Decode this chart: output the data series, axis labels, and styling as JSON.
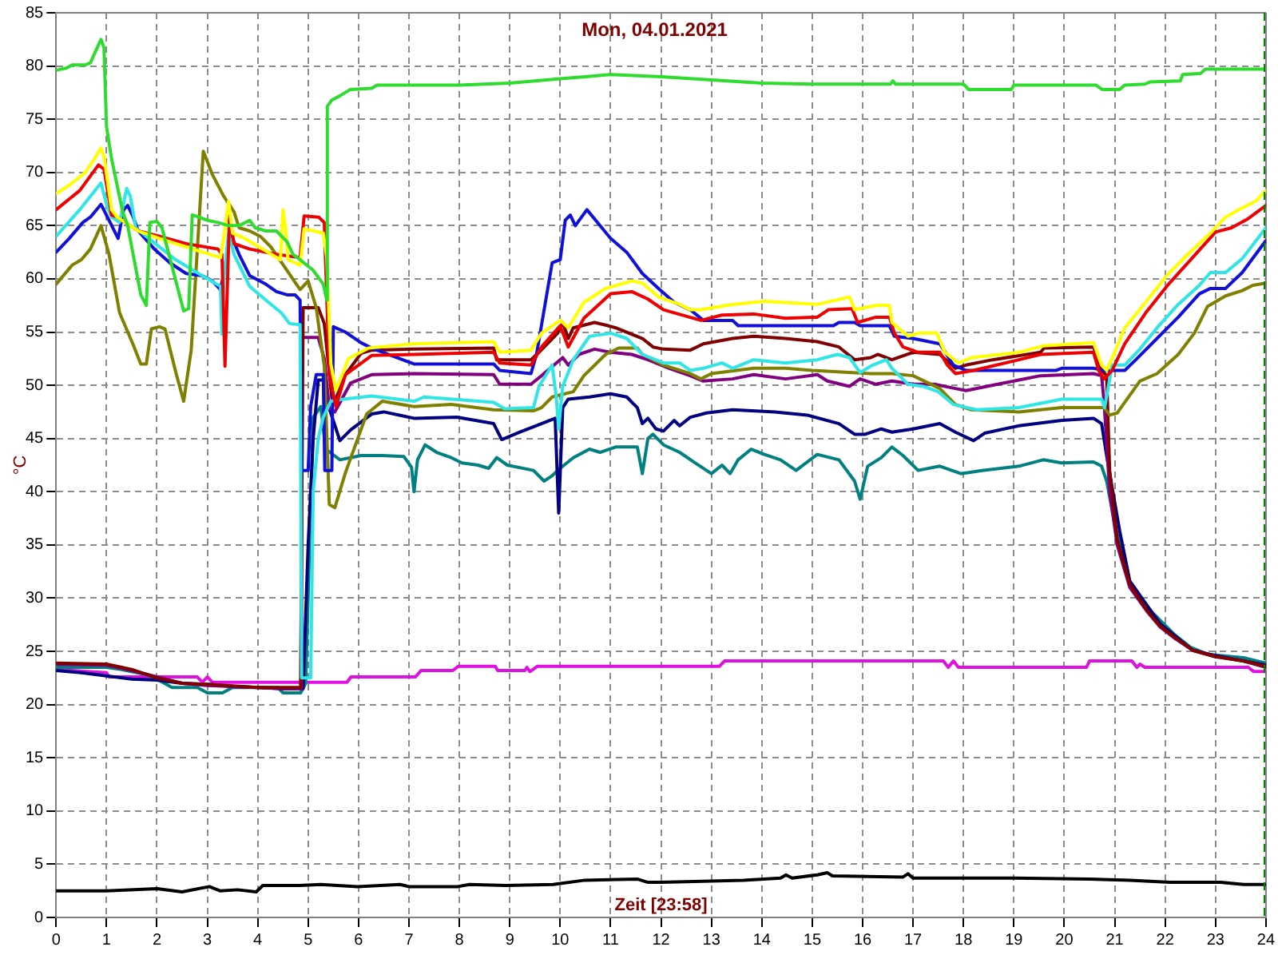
{
  "chart_data": {
    "type": "line",
    "title": "Mon, 04.01.2021",
    "xlabel": "Zeit [23:58]",
    "ylabel": "°C",
    "xlim": [
      0,
      24
    ],
    "ylim": [
      0,
      85
    ],
    "xticks": [
      0,
      1,
      2,
      3,
      4,
      5,
      6,
      7,
      8,
      9,
      10,
      11,
      12,
      13,
      14,
      15,
      16,
      17,
      18,
      19,
      20,
      21,
      22,
      23,
      24
    ],
    "yticks": [
      0,
      5,
      10,
      15,
      20,
      25,
      30,
      35,
      40,
      45,
      50,
      55,
      60,
      65,
      70,
      75,
      80,
      85
    ],
    "grid": true,
    "marker": "none",
    "ref_lines": [
      {
        "axis": "x",
        "value": 23.97,
        "color": "#008000",
        "line_style": "dashed"
      }
    ],
    "series": [
      {
        "color": "#2edc2e",
        "x": [
          0,
          0.2,
          0.32,
          0.58,
          0.68,
          0.89,
          0.95,
          1,
          1.1,
          1.21,
          1.32,
          1.42,
          1.68,
          1.79,
          1.86,
          2,
          2.1,
          2.53,
          2.63,
          2.7,
          2.84,
          3,
          3.21,
          3.42,
          3.63,
          3.84,
          3.95,
          4.16,
          4.37,
          4.58,
          4.7,
          4.84,
          5.1,
          5.3,
          5.37,
          5.38,
          5.47,
          5.63,
          5.84,
          6.26,
          6.37,
          7,
          8,
          9,
          10,
          10.5,
          11,
          12,
          13,
          14,
          15,
          15.95,
          16.55,
          16.6,
          16.65,
          18,
          18.1,
          18.95,
          19,
          20.63,
          20.75,
          21.1,
          21.2,
          21.6,
          21.7,
          22.3,
          22.35,
          22.7,
          22.8,
          24
        ],
        "values": [
          79.6,
          79.8,
          80.1,
          80.1,
          80.3,
          82.5,
          81.7,
          74.3,
          71.3,
          68.8,
          66.3,
          65,
          58.5,
          57.5,
          65.3,
          65.4,
          64.8,
          57,
          57.2,
          66,
          65.8,
          65.5,
          65.3,
          65,
          65,
          65.5,
          64.8,
          64.5,
          64.5,
          63.5,
          62.3,
          61.8,
          60.8,
          59.5,
          58,
          76.2,
          76.8,
          77.2,
          77.8,
          77.9,
          78.2,
          78.2,
          78.2,
          78.4,
          78.8,
          79,
          79.2,
          79,
          78.7,
          78.4,
          78.3,
          78.3,
          78.3,
          78.6,
          78.3,
          78.3,
          77.8,
          77.8,
          78.2,
          78.2,
          77.8,
          77.8,
          78.2,
          78.3,
          78.5,
          78.6,
          79.2,
          79.3,
          79.7,
          79.7
        ]
      },
      {
        "color": "#ffff00",
        "x": [
          0,
          0.26,
          0.58,
          0.79,
          0.89,
          0.95,
          1.1,
          1.21,
          1.63,
          2.05,
          2.58,
          3.26,
          3.33,
          3.42,
          3.5,
          3.74,
          4.45,
          4.5,
          4.55,
          4.6,
          4.84,
          4.92,
          5.3,
          5.37,
          5.45,
          5.55,
          5.8,
          6.2,
          7.1,
          8.68,
          8.8,
          9.42,
          9.63,
          10,
          10.16,
          10.47,
          10.9,
          11.42,
          11.63,
          11.95,
          12.37,
          12.58,
          12.79,
          13.42,
          14.05,
          15.1,
          15.74,
          15.84,
          16.26,
          16.53,
          16.58,
          16.9,
          17.1,
          17.47,
          17.63,
          17.9,
          18.16,
          19.1,
          19.58,
          20.58,
          20.74,
          20.84,
          21,
          21.2,
          21.63,
          22.05,
          22.47,
          22.9,
          23.2,
          23.5,
          23.8,
          24
        ],
        "values": [
          68,
          68.8,
          70,
          71.5,
          72.3,
          71.5,
          66.5,
          65.8,
          64.5,
          63.8,
          63,
          62,
          64,
          67.3,
          64.3,
          63.8,
          61.8,
          66.5,
          64.8,
          61.8,
          61.3,
          64.7,
          64.3,
          62,
          52,
          49.5,
          52.5,
          53.5,
          53.9,
          54.1,
          53.1,
          53.3,
          54.9,
          56.1,
          55.4,
          57.8,
          59.1,
          59.8,
          59.6,
          58.3,
          57.6,
          57.1,
          57.1,
          57.6,
          57.9,
          57.6,
          58.3,
          57.1,
          57.5,
          57.5,
          55.9,
          54.6,
          54.9,
          54.9,
          53.1,
          52.1,
          52.6,
          53.1,
          53.7,
          54,
          51.9,
          51.4,
          53.1,
          55.4,
          57.9,
          60.4,
          62.4,
          64.3,
          65.8,
          66.6,
          67.3,
          68.3
        ]
      },
      {
        "color": "#ee0000",
        "x": [
          0,
          0.47,
          0.84,
          0.95,
          1.1,
          1.21,
          1.63,
          2.05,
          2.58,
          3.21,
          3.29,
          3.35,
          3.44,
          3.53,
          3.84,
          4.37,
          4.84,
          4.92,
          5.21,
          5.32,
          5.42,
          5.55,
          5.74,
          6.26,
          7.1,
          8.68,
          8.8,
          9.42,
          9.63,
          10,
          10.16,
          10.47,
          11,
          11.42,
          11.74,
          12.05,
          12.79,
          13.21,
          13.84,
          14.47,
          15.1,
          15.32,
          15.79,
          15.9,
          16.26,
          16.53,
          16.63,
          16.8,
          17.1,
          17.53,
          17.68,
          17.84,
          18.2,
          19.1,
          19.53,
          20.58,
          20.68,
          20.79,
          20.95,
          21.2,
          21.63,
          22.05,
          22.47,
          23,
          23.32,
          23.63,
          24
        ],
        "values": [
          66.5,
          68.3,
          70.7,
          70.3,
          66,
          65.8,
          64.5,
          64,
          63.3,
          62.8,
          62.3,
          51.8,
          66,
          63.3,
          62.8,
          62.3,
          62,
          65.9,
          65.8,
          65.3,
          51,
          48,
          51,
          52.8,
          52.9,
          53.1,
          52.1,
          51.9,
          53.6,
          55.6,
          53.6,
          56.3,
          58.6,
          58.8,
          58.1,
          57.1,
          56.1,
          56.6,
          56.7,
          56.3,
          56.4,
          57.1,
          57.2,
          55.9,
          56.4,
          56.4,
          54.9,
          53.6,
          53.1,
          53.1,
          51.9,
          51.1,
          51.4,
          52.4,
          52.9,
          53.1,
          51.4,
          50.6,
          51.4,
          53.9,
          56.9,
          59.4,
          61.6,
          64.4,
          64.8,
          65.6,
          66.9
        ]
      },
      {
        "color": "#2ee6e6",
        "x": [
          0,
          0.47,
          0.89,
          1,
          1.1,
          1.26,
          1.4,
          1.47,
          1.58,
          1.84,
          2.37,
          2.9,
          3.26,
          3.29,
          3.33,
          3.42,
          3.53,
          3.84,
          4.16,
          4.47,
          4.63,
          4.84,
          4.87,
          5.05,
          5.1,
          5.2,
          5.3,
          5.45,
          5.7,
          6.26,
          7.1,
          7.3,
          8.68,
          8.9,
          9.47,
          9.58,
          9.84,
          9.92,
          9.97,
          10.05,
          10.26,
          10.58,
          11,
          11.32,
          11.63,
          12.05,
          12.37,
          12.58,
          12.84,
          13.21,
          13.42,
          13.84,
          14.47,
          15.1,
          15.5,
          15.74,
          15.95,
          16.2,
          16.47,
          16.58,
          16.9,
          17.2,
          17.5,
          17.8,
          18.26,
          19.1,
          19.95,
          20.74,
          20.8,
          20.95,
          21.2,
          21.5,
          21.84,
          22.26,
          22.68,
          22.9,
          23.2,
          23.53,
          24
        ],
        "values": [
          64,
          66.5,
          69,
          67,
          65.8,
          65.3,
          68.5,
          67.8,
          64.8,
          63.8,
          61.8,
          60.3,
          59.3,
          54.8,
          60,
          64.3,
          62.3,
          59.3,
          58,
          56.8,
          55.8,
          55.7,
          22.5,
          22.5,
          40,
          45,
          47,
          48.5,
          48.7,
          49,
          48.5,
          48.9,
          48.4,
          47.8,
          47.9,
          49.9,
          51.9,
          49,
          45.9,
          49.9,
          52.4,
          54.6,
          54.9,
          54.4,
          52.9,
          52.1,
          52.1,
          51.4,
          51.6,
          52.1,
          51.6,
          52.4,
          52.1,
          52.4,
          52.9,
          52.6,
          51.2,
          51.9,
          52.4,
          51.6,
          50.1,
          49.9,
          49.4,
          48.2,
          47.7,
          47.9,
          48.7,
          48.7,
          47.9,
          51.9,
          51.9,
          53.4,
          55.4,
          57.6,
          59.4,
          60.6,
          60.6,
          61.9,
          64.8
        ]
      },
      {
        "color": "#1010d8",
        "x": [
          0,
          0.26,
          0.53,
          0.68,
          0.89,
          1.05,
          1.23,
          1.34,
          1.42,
          1.53,
          1.63,
          1.95,
          2.26,
          2.58,
          2.9,
          3.1,
          3.26,
          3.35,
          3.44,
          3.63,
          3.84,
          4.16,
          4.37,
          4.58,
          4.74,
          4.84,
          4.87,
          5,
          5.05,
          5.16,
          5.3,
          5.33,
          5.47,
          5.5,
          5.74,
          6.05,
          6.26,
          7.1,
          8.68,
          8.8,
          9.42,
          9.53,
          9.84,
          10,
          10.1,
          10.2,
          10.3,
          10.53,
          10.79,
          11,
          11.32,
          11.63,
          11.95,
          12.26,
          12.58,
          12.84,
          13.42,
          13.53,
          15.42,
          15.53,
          15.84,
          15.95,
          16.53,
          16.63,
          17,
          17.53,
          17.8,
          18.05,
          19.84,
          19.95,
          20.58,
          20.8,
          21.2,
          21.42,
          21.84,
          22.26,
          22.68,
          22.9,
          23.2,
          23.53,
          24
        ],
        "values": [
          62.5,
          63.8,
          65.3,
          65.8,
          67,
          65.5,
          63.8,
          66.5,
          66.9,
          65.8,
          64.5,
          62.8,
          61.5,
          60.5,
          60.3,
          59.8,
          59,
          61,
          64.5,
          62.3,
          60.3,
          59.5,
          58.8,
          58.5,
          58.5,
          58,
          42,
          42,
          48,
          51,
          51,
          42,
          42,
          55.5,
          55,
          54,
          53.5,
          52,
          52,
          51.4,
          51.1,
          52.9,
          61.5,
          61.8,
          65.5,
          66,
          65,
          66.5,
          65,
          63.8,
          62.5,
          60.5,
          59.1,
          57.8,
          57.1,
          56.1,
          56.1,
          55.6,
          55.6,
          55.9,
          55.9,
          55.6,
          55.6,
          54.6,
          54.4,
          53.9,
          51.9,
          51.4,
          51.4,
          51.6,
          51.6,
          51.4,
          51.4,
          52.4,
          54.4,
          56.4,
          58.6,
          59.1,
          59.1,
          60.6,
          63.6
        ]
      },
      {
        "color": "#808000",
        "x": [
          0,
          0.32,
          0.5,
          0.68,
          0.89,
          1.05,
          1.26,
          1.53,
          1.68,
          1.79,
          1.89,
          2.05,
          2.16,
          2.37,
          2.53,
          2.68,
          2.92,
          3.1,
          3.32,
          3.53,
          3.63,
          3.84,
          4.05,
          4.26,
          4.58,
          4.84,
          5,
          5.16,
          5.32,
          5.42,
          5.53,
          5.74,
          6.16,
          6.47,
          7.1,
          7.84,
          8.68,
          9.47,
          9.63,
          9.84,
          10.26,
          10.47,
          10.9,
          11.16,
          11.53,
          11.63,
          12.05,
          12.58,
          12.79,
          13,
          13.84,
          14.47,
          15,
          16.16,
          16.58,
          17,
          17.53,
          17.84,
          18.16,
          19.1,
          19.95,
          20.79,
          20.9,
          21.05,
          21.2,
          21.5,
          21.84,
          22.26,
          22.58,
          22.84,
          23.2,
          23.53,
          23.74,
          24
        ],
        "values": [
          59.5,
          61.3,
          61.8,
          62.8,
          65,
          62.3,
          56.8,
          53.8,
          52,
          52,
          55.3,
          55.5,
          55.3,
          51.3,
          48.5,
          53.3,
          72,
          69.8,
          67.8,
          66.3,
          64.8,
          64.5,
          64,
          63,
          60.8,
          59,
          59.8,
          57.3,
          51.8,
          38.8,
          38.5,
          41.8,
          47.3,
          48.5,
          48,
          48.2,
          47.7,
          47.6,
          47.9,
          48.9,
          49.4,
          50.9,
          52.9,
          53.5,
          53.5,
          52.9,
          51.9,
          51.1,
          50.6,
          51.1,
          51.6,
          51.6,
          51.4,
          51.1,
          51.1,
          50.9,
          49.7,
          48.2,
          47.7,
          47.5,
          47.9,
          47.9,
          47.2,
          47.4,
          48.4,
          50.4,
          51.1,
          52.9,
          54.9,
          57.4,
          58.4,
          58.9,
          59.4,
          59.6
        ]
      },
      {
        "color": "#800000",
        "x": [
          0,
          1,
          1.5,
          2,
          2.5,
          3,
          4,
          4.5,
          4.85,
          4.9,
          5.2,
          5.32,
          5.47,
          5.53,
          5.74,
          6.05,
          6.26,
          7.1,
          8.68,
          8.74,
          9.42,
          9.58,
          9.95,
          10.05,
          10.16,
          10.26,
          10.68,
          10.95,
          11.1,
          11.63,
          11.84,
          12.05,
          12.58,
          12.84,
          13.42,
          13.84,
          14.47,
          15.1,
          15.53,
          15.84,
          16.16,
          16.3,
          16.58,
          17,
          17.53,
          17.84,
          18.05,
          18.58,
          19.53,
          19.6,
          20.58,
          20.74,
          20.84,
          20.9,
          21.05,
          21.3,
          21.65,
          21.9,
          22.2,
          22.55,
          23,
          23.55,
          24
        ],
        "values": [
          23.9,
          23.8,
          23.3,
          22.5,
          22,
          21.9,
          21.6,
          21.6,
          21.6,
          57.3,
          57.3,
          55.8,
          48.8,
          48.5,
          51,
          53,
          53.3,
          53.4,
          53.5,
          52.4,
          52.4,
          53.1,
          54.9,
          55.9,
          54.4,
          55.4,
          55.9,
          55.6,
          55.4,
          54.4,
          53.6,
          53.4,
          53.3,
          53.9,
          54.4,
          54.6,
          54.4,
          54.1,
          53.6,
          52.4,
          52.6,
          52.9,
          52.4,
          53.1,
          52.9,
          51.6,
          51.9,
          52.4,
          53.1,
          53.5,
          53.6,
          51.4,
          50.9,
          42,
          35.5,
          31.3,
          28.8,
          27.4,
          26.3,
          25.1,
          24.5,
          24.1,
          23.6
        ]
      },
      {
        "color": "#800080",
        "x": [
          0,
          1,
          1.5,
          2,
          2.5,
          3,
          4,
          4.5,
          4.85,
          4.87,
          5.2,
          5.32,
          5.42,
          5.53,
          5.84,
          6.26,
          7.1,
          8.68,
          8.8,
          9.42,
          9.63,
          9.9,
          10.05,
          10.16,
          10.37,
          10.68,
          11,
          11.42,
          11.74,
          12.16,
          12.58,
          12.84,
          13.42,
          13.84,
          14.47,
          15.1,
          15.3,
          15.74,
          15.95,
          16.26,
          16.58,
          17,
          17.42,
          17.84,
          18.05,
          18.68,
          19.53,
          20.58,
          20.74,
          20.79,
          20.9,
          21.05,
          21.3,
          21.65,
          21.9,
          22.2,
          22.55,
          23,
          23.55,
          24
        ],
        "values": [
          23.8,
          23.7,
          23.2,
          22.6,
          22,
          21.8,
          21.6,
          21.5,
          21.5,
          54.5,
          54.5,
          52.5,
          47.8,
          47.5,
          50.2,
          51,
          51.1,
          51,
          50.1,
          50.1,
          50.9,
          52,
          52.6,
          51.9,
          52.9,
          53.4,
          53.1,
          52.9,
          52.4,
          51.6,
          50.9,
          50.4,
          50.6,
          51,
          50.6,
          51,
          50.4,
          49.9,
          50.6,
          50.1,
          50.4,
          50.1,
          50.1,
          49.7,
          49.5,
          50.1,
          50.9,
          51.1,
          50.9,
          48.4,
          40,
          35,
          31,
          28.7,
          27.3,
          26.2,
          25.1,
          24.5,
          24.1,
          23.5
        ]
      },
      {
        "color": "#000080",
        "x": [
          0,
          0.5,
          1,
          1.5,
          2,
          2.5,
          3,
          3.5,
          4,
          4.5,
          4.9,
          5,
          5.1,
          5.2,
          5.32,
          5.42,
          5.63,
          5.84,
          6.26,
          6.5,
          7.1,
          7.95,
          8.68,
          8.84,
          9.2,
          9.63,
          9.9,
          9.97,
          10.05,
          10.16,
          10.58,
          11,
          11.32,
          11.53,
          11.63,
          11.74,
          11.9,
          12.05,
          12.26,
          12.37,
          12.58,
          12.9,
          13.42,
          14.26,
          14.9,
          15.53,
          15.84,
          16.05,
          16.37,
          16.58,
          17,
          17.53,
          17.84,
          18.2,
          18.42,
          19.1,
          19.95,
          20.58,
          20.74,
          20.84,
          21,
          21.1,
          21.3,
          21.9,
          22.55,
          23,
          23.55,
          24
        ],
        "values": [
          23.2,
          23,
          22.7,
          22.4,
          22.3,
          22,
          21.9,
          21.7,
          21.6,
          21.5,
          21.5,
          35,
          45,
          50.5,
          50.5,
          47.8,
          44.8,
          45.8,
          47.3,
          47.5,
          46.9,
          47,
          46.4,
          44.9,
          45.6,
          46.4,
          46.9,
          38,
          47.9,
          48.7,
          48.9,
          49.2,
          48.9,
          47.9,
          46.4,
          46.9,
          45.9,
          45.7,
          46.7,
          46.2,
          47,
          47.4,
          47.7,
          47.5,
          47.2,
          46.4,
          45.4,
          45.4,
          45.9,
          45.6,
          45.9,
          46.4,
          45.6,
          44.8,
          45.5,
          46.2,
          46.7,
          46.9,
          46.4,
          43.4,
          39,
          36.3,
          31.6,
          27.6,
          25.1,
          24.6,
          24.1,
          23.7
        ]
      },
      {
        "color": "#008080",
        "x": [
          0,
          1,
          1.3,
          1.8,
          2,
          2.3,
          2.8,
          3,
          3.3,
          3.5,
          4,
          4.4,
          4.5,
          4.85,
          4.95,
          5.1,
          5.25,
          5.35,
          5.63,
          6.05,
          6.47,
          6.9,
          7.05,
          7.1,
          7.17,
          7.32,
          7.55,
          7.84,
          8.05,
          8.37,
          8.58,
          8.74,
          8.95,
          9.47,
          9.68,
          9.84,
          10,
          10.26,
          10.58,
          10.79,
          11.1,
          11.53,
          11.63,
          11.74,
          11.84,
          12.05,
          12.37,
          12.68,
          13,
          13.21,
          13.37,
          13.53,
          13.79,
          14.05,
          14.37,
          14.68,
          15.1,
          15.53,
          15.84,
          15.95,
          16.1,
          16.37,
          16.58,
          16.8,
          17.1,
          17.53,
          17.95,
          18.37,
          19.1,
          19.58,
          19.95,
          20.58,
          20.74,
          20.84,
          21,
          21.3,
          21.65,
          22.18,
          22.5,
          22.86,
          23.13,
          23.55,
          24
        ],
        "values": [
          23.5,
          23.5,
          23.3,
          22.8,
          22.4,
          21.6,
          21.6,
          21.1,
          21.1,
          21.6,
          21.6,
          21.6,
          21.1,
          21.1,
          22,
          47,
          48,
          44,
          43,
          43.4,
          43.4,
          43.3,
          42.3,
          40,
          43,
          44.4,
          43.7,
          43.2,
          42.7,
          42.5,
          42.2,
          43.2,
          42.5,
          42,
          41,
          41.5,
          42.2,
          43.2,
          44,
          43.7,
          44.2,
          44.2,
          41.7,
          45,
          45.4,
          44.4,
          43.7,
          42.7,
          41.7,
          42.5,
          41.7,
          43,
          44,
          43.5,
          43,
          42,
          43.5,
          43,
          41,
          39.3,
          42.4,
          43.2,
          44.2,
          43.4,
          42,
          42.4,
          41.7,
          42,
          42.4,
          43,
          42.7,
          42.8,
          42.4,
          41,
          37,
          31.1,
          29.1,
          26.6,
          25.4,
          24.7,
          24.6,
          24.4,
          23.9
        ]
      },
      {
        "color": "#e010e0",
        "x": [
          0,
          1,
          1.05,
          2.8,
          2.9,
          3,
          3.1,
          5.77,
          5.85,
          7.13,
          7.24,
          7.87,
          7.98,
          8.71,
          8.76,
          9.3,
          9.34,
          9.4,
          9.55,
          13.16,
          13.26,
          17.6,
          17.7,
          17.8,
          17.9,
          20.44,
          20.5,
          21.34,
          21.44,
          21.5,
          21.6,
          23.65,
          23.76,
          24
        ],
        "values": [
          23.3,
          23,
          22.6,
          22.6,
          22.1,
          22.6,
          22.1,
          22.1,
          22.6,
          22.6,
          23.2,
          23.2,
          23.6,
          23.6,
          23.2,
          23.2,
          23.5,
          23.1,
          23.6,
          23.6,
          24.1,
          24.1,
          23.5,
          24.1,
          23.5,
          23.5,
          24.1,
          24.1,
          23.5,
          23.8,
          23.5,
          23.5,
          23.1,
          23.1
        ]
      },
      {
        "color": "#000000",
        "x": [
          0,
          1,
          2,
          2.5,
          3.04,
          3.25,
          3.6,
          3.97,
          4.1,
          4.83,
          5.25,
          5.98,
          6.82,
          7,
          7.97,
          8.2,
          8.92,
          9.86,
          10.49,
          11.54,
          11.74,
          12,
          13.64,
          14.37,
          14.48,
          14.6,
          15.1,
          15.3,
          15.4,
          16.8,
          16.9,
          17,
          18.9,
          20.5,
          21.3,
          22.1,
          23.1,
          23.56,
          24
        ],
        "values": [
          2.5,
          2.5,
          2.7,
          2.4,
          2.9,
          2.5,
          2.6,
          2.4,
          3,
          3,
          3.1,
          2.9,
          3.1,
          2.9,
          2.9,
          3.1,
          3,
          3.1,
          3.5,
          3.6,
          3.3,
          3.3,
          3.5,
          3.7,
          4,
          3.7,
          4,
          4.2,
          3.9,
          3.8,
          4.1,
          3.7,
          3.7,
          3.6,
          3.5,
          3.3,
          3.3,
          3.1,
          3.1
        ]
      }
    ]
  }
}
